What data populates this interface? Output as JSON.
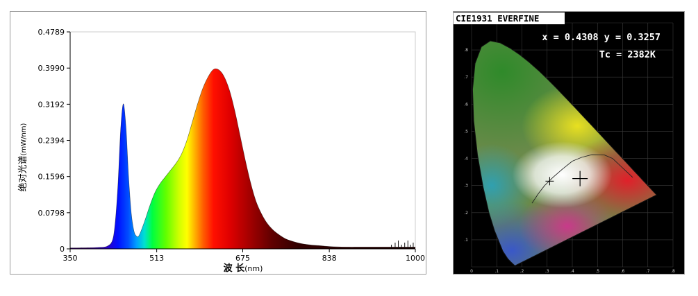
{
  "chart_data": [
    {
      "type": "area",
      "title": "",
      "xlabel": "波 长",
      "xlabel_unit": "(nm)",
      "ylabel": "绝对光谱",
      "ylabel_unit": "(mW/nm)",
      "xlim": [
        350,
        1000
      ],
      "ylim": [
        0,
        0.4789
      ],
      "x_ticks": [
        "350",
        "513",
        "675",
        "838",
        "1000"
      ],
      "y_ticks": [
        "0",
        "0.0798",
        "0.1596",
        "0.2394",
        "0.3192",
        "0.3990",
        "0.4789"
      ],
      "fill": "visible-spectrum gradient under curve",
      "grid": false,
      "series": [
        {
          "x": [
            350,
            400,
            420,
            430,
            435,
            440,
            445,
            450,
            455,
            460,
            465,
            470,
            475,
            480,
            490,
            500,
            510,
            520,
            530,
            540,
            550,
            560,
            570,
            580,
            590,
            600,
            610,
            620,
            630,
            640,
            650,
            660,
            670,
            680,
            690,
            700,
            710,
            720,
            730,
            740,
            750,
            760,
            780,
            800,
            820,
            840,
            870,
            900,
            950,
            1000
          ],
          "values": [
            0.002,
            0.003,
            0.006,
            0.02,
            0.06,
            0.14,
            0.26,
            0.32,
            0.27,
            0.16,
            0.08,
            0.04,
            0.028,
            0.03,
            0.06,
            0.095,
            0.125,
            0.145,
            0.16,
            0.175,
            0.19,
            0.21,
            0.24,
            0.28,
            0.32,
            0.355,
            0.38,
            0.396,
            0.395,
            0.38,
            0.35,
            0.305,
            0.25,
            0.195,
            0.145,
            0.105,
            0.078,
            0.058,
            0.044,
            0.034,
            0.026,
            0.02,
            0.013,
            0.009,
            0.007,
            0.005,
            0.004,
            0.004,
            0.004,
            0.004
          ]
        }
      ]
    },
    {
      "type": "scatter",
      "title": "CIE1931 EVERFINE",
      "coord_text": "x = 0.4308 y = 0.3257",
      "cct_text": "Tc = 2382K",
      "xlim": [
        0,
        0.8
      ],
      "ylim": [
        0,
        0.9
      ],
      "x_ticks": [
        "0",
        ".1",
        ".2",
        ".3",
        ".4",
        ".5",
        ".6",
        ".7",
        ".8"
      ],
      "y_ticks": [
        ".1",
        ".2",
        ".3",
        ".4",
        ".5",
        ".6",
        ".7",
        ".8",
        ".9"
      ],
      "background": "#000000",
      "point": {
        "x": 0.4308,
        "y": 0.3257
      },
      "reference_point": {
        "x": 0.3101,
        "y": 0.3162
      }
    }
  ]
}
